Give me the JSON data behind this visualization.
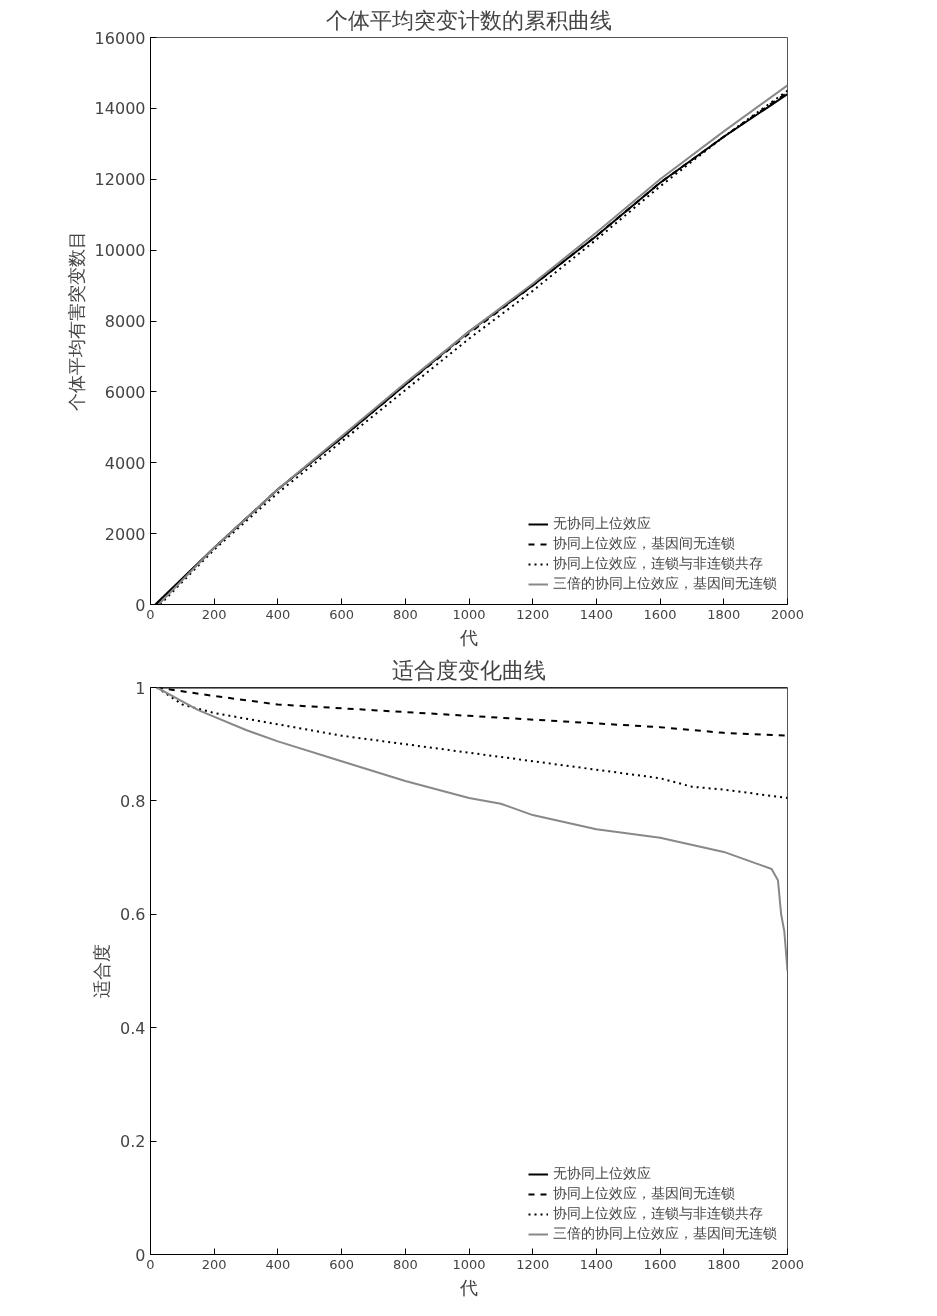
{
  "chart_data": [
    {
      "type": "line",
      "title": "个体平均突变计数的累积曲线",
      "xlabel": "代",
      "ylabel": "个体平均有害突变数目",
      "xlim": [
        0,
        2000
      ],
      "ylim": [
        0,
        16000
      ],
      "xticks": [
        0,
        200,
        400,
        600,
        800,
        1000,
        1200,
        1400,
        1600,
        1800,
        2000
      ],
      "yticks": [
        0,
        2000,
        4000,
        6000,
        8000,
        10000,
        12000,
        14000,
        16000
      ],
      "grid": false,
      "legend": "bottom right",
      "series": [
        {
          "name": "无协同上位效应",
          "color": "#000000",
          "line_style": "solid",
          "x": [
            15,
            200,
            400,
            600,
            800,
            1000,
            1200,
            1400,
            1600,
            1800,
            2000
          ],
          "values": [
            0,
            1600,
            3250,
            4700,
            6200,
            7700,
            9000,
            10400,
            11900,
            13200,
            14400
          ]
        },
        {
          "name": "协同上位效应，基因间无连锁",
          "color": "#000000",
          "line_style": "dashed",
          "x": [
            20,
            200,
            400,
            600,
            800,
            1000,
            1200,
            1400,
            1600,
            1800,
            2000
          ],
          "values": [
            0,
            1600,
            3250,
            4700,
            6200,
            7650,
            9000,
            10400,
            11900,
            13200,
            14450
          ]
        },
        {
          "name": "协同上位效应，连锁与非连锁共存",
          "color": "#000000",
          "line_style": "dotted",
          "x": [
            30,
            200,
            400,
            600,
            800,
            1000,
            1200,
            1400,
            1600,
            1800,
            2000
          ],
          "values": [
            0,
            1550,
            3150,
            4600,
            6050,
            7500,
            8850,
            10300,
            11800,
            13200,
            14500
          ]
        },
        {
          "name": "三倍的协同上位效应，基因间无连锁",
          "color": "#888888",
          "line_style": "solid",
          "x": [
            25,
            200,
            400,
            600,
            800,
            1000,
            1200,
            1400,
            1600,
            1800,
            2000
          ],
          "values": [
            0,
            1600,
            3250,
            4750,
            6250,
            7700,
            9050,
            10500,
            12000,
            13350,
            14650
          ]
        }
      ]
    },
    {
      "type": "line",
      "title": "适合度变化曲线",
      "xlabel": "代",
      "ylabel": "适合度",
      "xlim": [
        0,
        2000
      ],
      "ylim": [
        0,
        1
      ],
      "xticks": [
        0,
        200,
        400,
        600,
        800,
        1000,
        1200,
        1400,
        1600,
        1800,
        2000
      ],
      "yticks": [
        0,
        0.2,
        0.4,
        0.6,
        0.8,
        1
      ],
      "grid": false,
      "legend": "bottom right",
      "series": [
        {
          "name": "无协同上位效应",
          "color": "#000000",
          "line_style": "solid",
          "x": [
            20,
            2000
          ],
          "values": [
            1,
            1
          ]
        },
        {
          "name": "协同上位效应，基因间无连锁",
          "color": "#000000",
          "line_style": "dashed",
          "x": [
            20,
            200,
            400,
            700,
            1000,
            1300,
            1600,
            1800,
            2000
          ],
          "values": [
            1,
            0.985,
            0.97,
            0.96,
            0.95,
            0.94,
            0.93,
            0.92,
            0.915
          ]
        },
        {
          "name": "协同上位效应，连锁与非连锁共存",
          "color": "#000000",
          "line_style": "dotted",
          "x": [
            20,
            100,
            200,
            400,
            600,
            800,
            1000,
            1200,
            1400,
            1600,
            1700,
            1800,
            2000
          ],
          "values": [
            1,
            0.97,
            0.955,
            0.935,
            0.915,
            0.9,
            0.885,
            0.87,
            0.855,
            0.84,
            0.825,
            0.82,
            0.805
          ]
        },
        {
          "name": "三倍的协同上位效应，基因间无连锁",
          "color": "#888888",
          "line_style": "solid",
          "x": [
            20,
            150,
            300,
            400,
            600,
            800,
            1000,
            1100,
            1200,
            1400,
            1600,
            1800,
            1950,
            1970,
            1980,
            1990,
            2000
          ],
          "values": [
            1,
            0.96,
            0.925,
            0.905,
            0.87,
            0.835,
            0.805,
            0.795,
            0.775,
            0.75,
            0.735,
            0.71,
            0.68,
            0.66,
            0.6,
            0.57,
            0.5
          ]
        }
      ]
    }
  ]
}
